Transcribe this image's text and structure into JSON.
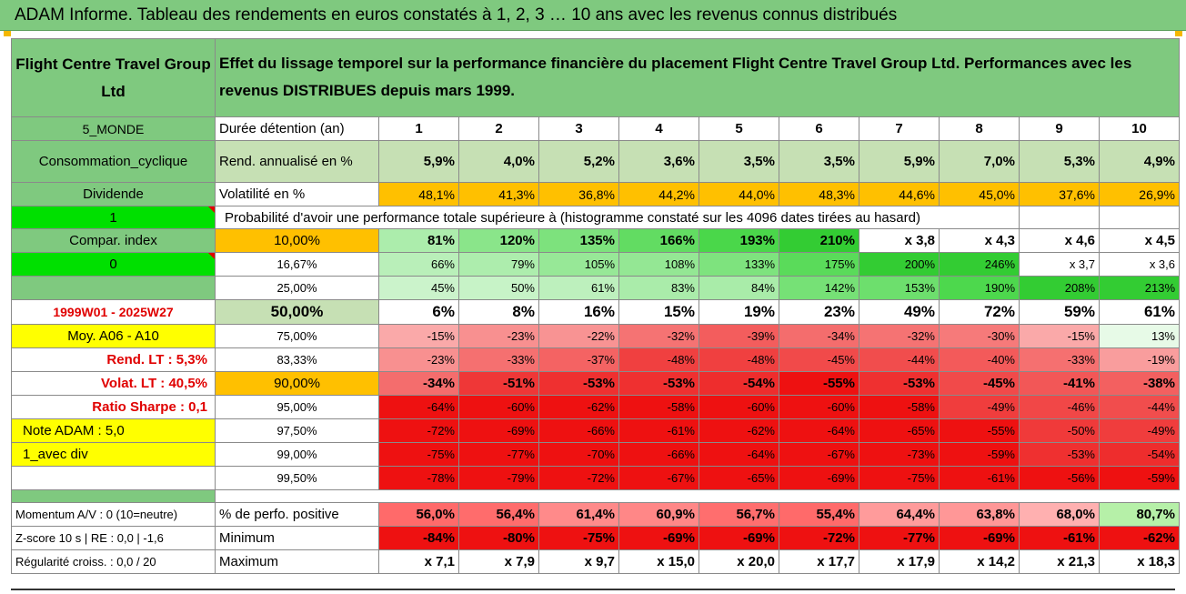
{
  "title": "ADAM Informe. Tableau des rendements en euros constatés à 1, 2, 3 … 10 ans avec les revenus connus distribués",
  "company": "Flight Centre Travel Group Ltd",
  "description": "Effet du lissage temporel sur la performance financière du placement Flight Centre Travel Group Ltd. Performances avec les revenus DISTRIBUES depuis mars 1999.",
  "side": {
    "zone": "5_MONDE",
    "sector": "Consommation_cyclique",
    "type": "Dividende",
    "one": "1",
    "compar": "Compar. index",
    "zero": "0",
    "period": "1999W01 - 2025W27",
    "moy": "Moy. A06 - A10",
    "rend_lt": "Rend. LT :    5,3%",
    "volat_lt": "Volat. LT :    40,5%",
    "sharpe": "Ratio Sharpe :    0,1",
    "note": "Note ADAM : 5,0",
    "div": "1_avec div"
  },
  "header": {
    "duree": "Durée détention (an)",
    "years": [
      "1",
      "2",
      "3",
      "4",
      "5",
      "6",
      "7",
      "8",
      "9",
      "10"
    ],
    "rend_label": "Rend. annualisé en %",
    "rend": [
      "5,9%",
      "4,0%",
      "5,2%",
      "3,6%",
      "3,5%",
      "3,5%",
      "5,9%",
      "7,0%",
      "5,3%",
      "4,9%"
    ],
    "vol_label": "Volatilité en %",
    "vol": [
      "48,1%",
      "41,3%",
      "36,8%",
      "44,2%",
      "44,0%",
      "48,3%",
      "44,6%",
      "45,0%",
      "37,6%",
      "26,9%"
    ],
    "prob_label": "Probabilité d'avoir une performance totale supérieure à (histogramme constaté sur les 4096 dates tirées au hasard)"
  },
  "rows": [
    {
      "pct": "10,00%",
      "vals": [
        "81%",
        "120%",
        "135%",
        "166%",
        "193%",
        "210%",
        "x 3,8",
        "x 4,3",
        "x 4,6",
        "x 4,5"
      ]
    },
    {
      "pct": "16,67%",
      "vals": [
        "66%",
        "79%",
        "105%",
        "108%",
        "133%",
        "175%",
        "200%",
        "246%",
        "x 3,7",
        "x 3,6"
      ]
    },
    {
      "pct": "25,00%",
      "vals": [
        "45%",
        "50%",
        "61%",
        "83%",
        "84%",
        "142%",
        "153%",
        "190%",
        "208%",
        "213%"
      ]
    },
    {
      "pct": "50,00%",
      "vals": [
        "6%",
        "8%",
        "16%",
        "15%",
        "19%",
        "23%",
        "49%",
        "72%",
        "59%",
        "61%"
      ]
    },
    {
      "pct": "75,00%",
      "vals": [
        "-15%",
        "-23%",
        "-22%",
        "-32%",
        "-39%",
        "-34%",
        "-32%",
        "-30%",
        "-15%",
        "13%"
      ]
    },
    {
      "pct": "83,33%",
      "vals": [
        "-23%",
        "-33%",
        "-37%",
        "-48%",
        "-48%",
        "-45%",
        "-44%",
        "-40%",
        "-33%",
        "-19%"
      ]
    },
    {
      "pct": "90,00%",
      "vals": [
        "-34%",
        "-51%",
        "-53%",
        "-53%",
        "-54%",
        "-55%",
        "-53%",
        "-45%",
        "-41%",
        "-38%"
      ]
    },
    {
      "pct": "95,00%",
      "vals": [
        "-64%",
        "-60%",
        "-62%",
        "-58%",
        "-60%",
        "-60%",
        "-58%",
        "-49%",
        "-46%",
        "-44%"
      ]
    },
    {
      "pct": "97,50%",
      "vals": [
        "-72%",
        "-69%",
        "-66%",
        "-61%",
        "-62%",
        "-64%",
        "-65%",
        "-55%",
        "-50%",
        "-49%"
      ]
    },
    {
      "pct": "99,00%",
      "vals": [
        "-75%",
        "-77%",
        "-70%",
        "-66%",
        "-64%",
        "-67%",
        "-73%",
        "-59%",
        "-53%",
        "-54%"
      ]
    },
    {
      "pct": "99,50%",
      "vals": [
        "-78%",
        "-79%",
        "-72%",
        "-67%",
        "-65%",
        "-69%",
        "-75%",
        "-61%",
        "-56%",
        "-59%"
      ]
    }
  ],
  "footer": {
    "momentum": "Momentum A/V : 0 (10=neutre)",
    "zscore": "Z-score 10 s | RE : 0,0 | -1,6",
    "regularite": "Régularité croiss. : 0,0 / 20",
    "pos_label": "% de perfo. positive",
    "pos": [
      "56,0%",
      "56,4%",
      "61,4%",
      "60,9%",
      "56,7%",
      "55,4%",
      "64,4%",
      "63,8%",
      "68,0%",
      "80,7%"
    ],
    "min_label": "Minimum",
    "min": [
      "-84%",
      "-80%",
      "-75%",
      "-69%",
      "-69%",
      "-72%",
      "-77%",
      "-69%",
      "-61%",
      "-62%"
    ],
    "max_label": "Maximum",
    "max": [
      "x 7,1",
      "x 7,9",
      "x 9,7",
      "x 15,0",
      "x 20,0",
      "x 17,7",
      "x 17,9",
      "x 14,2",
      "x 21,3",
      "x 18,3"
    ]
  }
}
